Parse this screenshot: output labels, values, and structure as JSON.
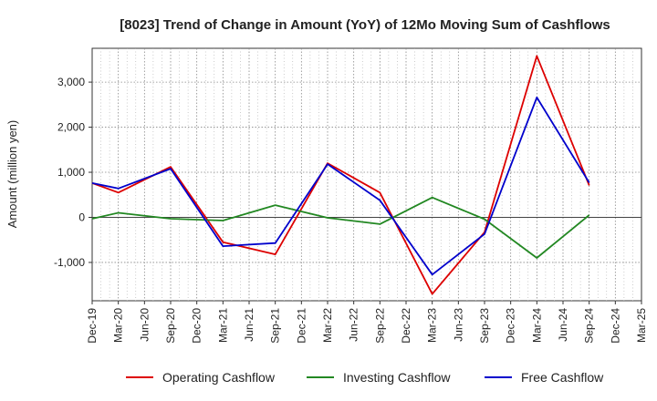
{
  "chart_data": {
    "type": "line",
    "title": "[8023]  Trend of Change in Amount (YoY) of 12Mo Moving Sum of Cashflows",
    "xlabel": "",
    "ylabel": "Amount (million yen)",
    "ylim": [
      -1850,
      3750
    ],
    "y_ticks": [
      -1000,
      0,
      1000,
      2000,
      3000
    ],
    "y_tick_labels": [
      "-1,000",
      "0",
      "1,000",
      "2,000",
      "3,000"
    ],
    "grid": true,
    "legend_position": "bottom",
    "categories": [
      "Dec-19",
      "Mar-20",
      "Jun-20",
      "Sep-20",
      "Dec-20",
      "Mar-21",
      "Jun-21",
      "Sep-21",
      "Dec-21",
      "Mar-22",
      "Jun-22",
      "Sep-22",
      "Dec-22",
      "Mar-23",
      "Jun-23",
      "Sep-23",
      "Dec-23",
      "Mar-24",
      "Jun-24",
      "Sep-24",
      "Dec-24",
      "Mar-25"
    ],
    "series": [
      {
        "name": "Operating Cashflow",
        "color": "#dd0000",
        "values": [
          760,
          550,
          null,
          1120,
          null,
          -550,
          null,
          -820,
          null,
          1200,
          null,
          550,
          null,
          -1700,
          null,
          -330,
          null,
          3580,
          null,
          710,
          null,
          null
        ]
      },
      {
        "name": "Investing Cashflow",
        "color": "#228822",
        "values": [
          -30,
          100,
          null,
          -30,
          null,
          -70,
          null,
          270,
          null,
          -10,
          null,
          -150,
          null,
          440,
          null,
          -40,
          null,
          -900,
          null,
          50,
          null,
          null
        ]
      },
      {
        "name": "Free Cashflow",
        "color": "#0000cc",
        "values": [
          760,
          640,
          null,
          1080,
          null,
          -640,
          null,
          -570,
          null,
          1180,
          null,
          380,
          null,
          -1270,
          null,
          -370,
          null,
          2660,
          null,
          770,
          null,
          null
        ]
      }
    ]
  }
}
